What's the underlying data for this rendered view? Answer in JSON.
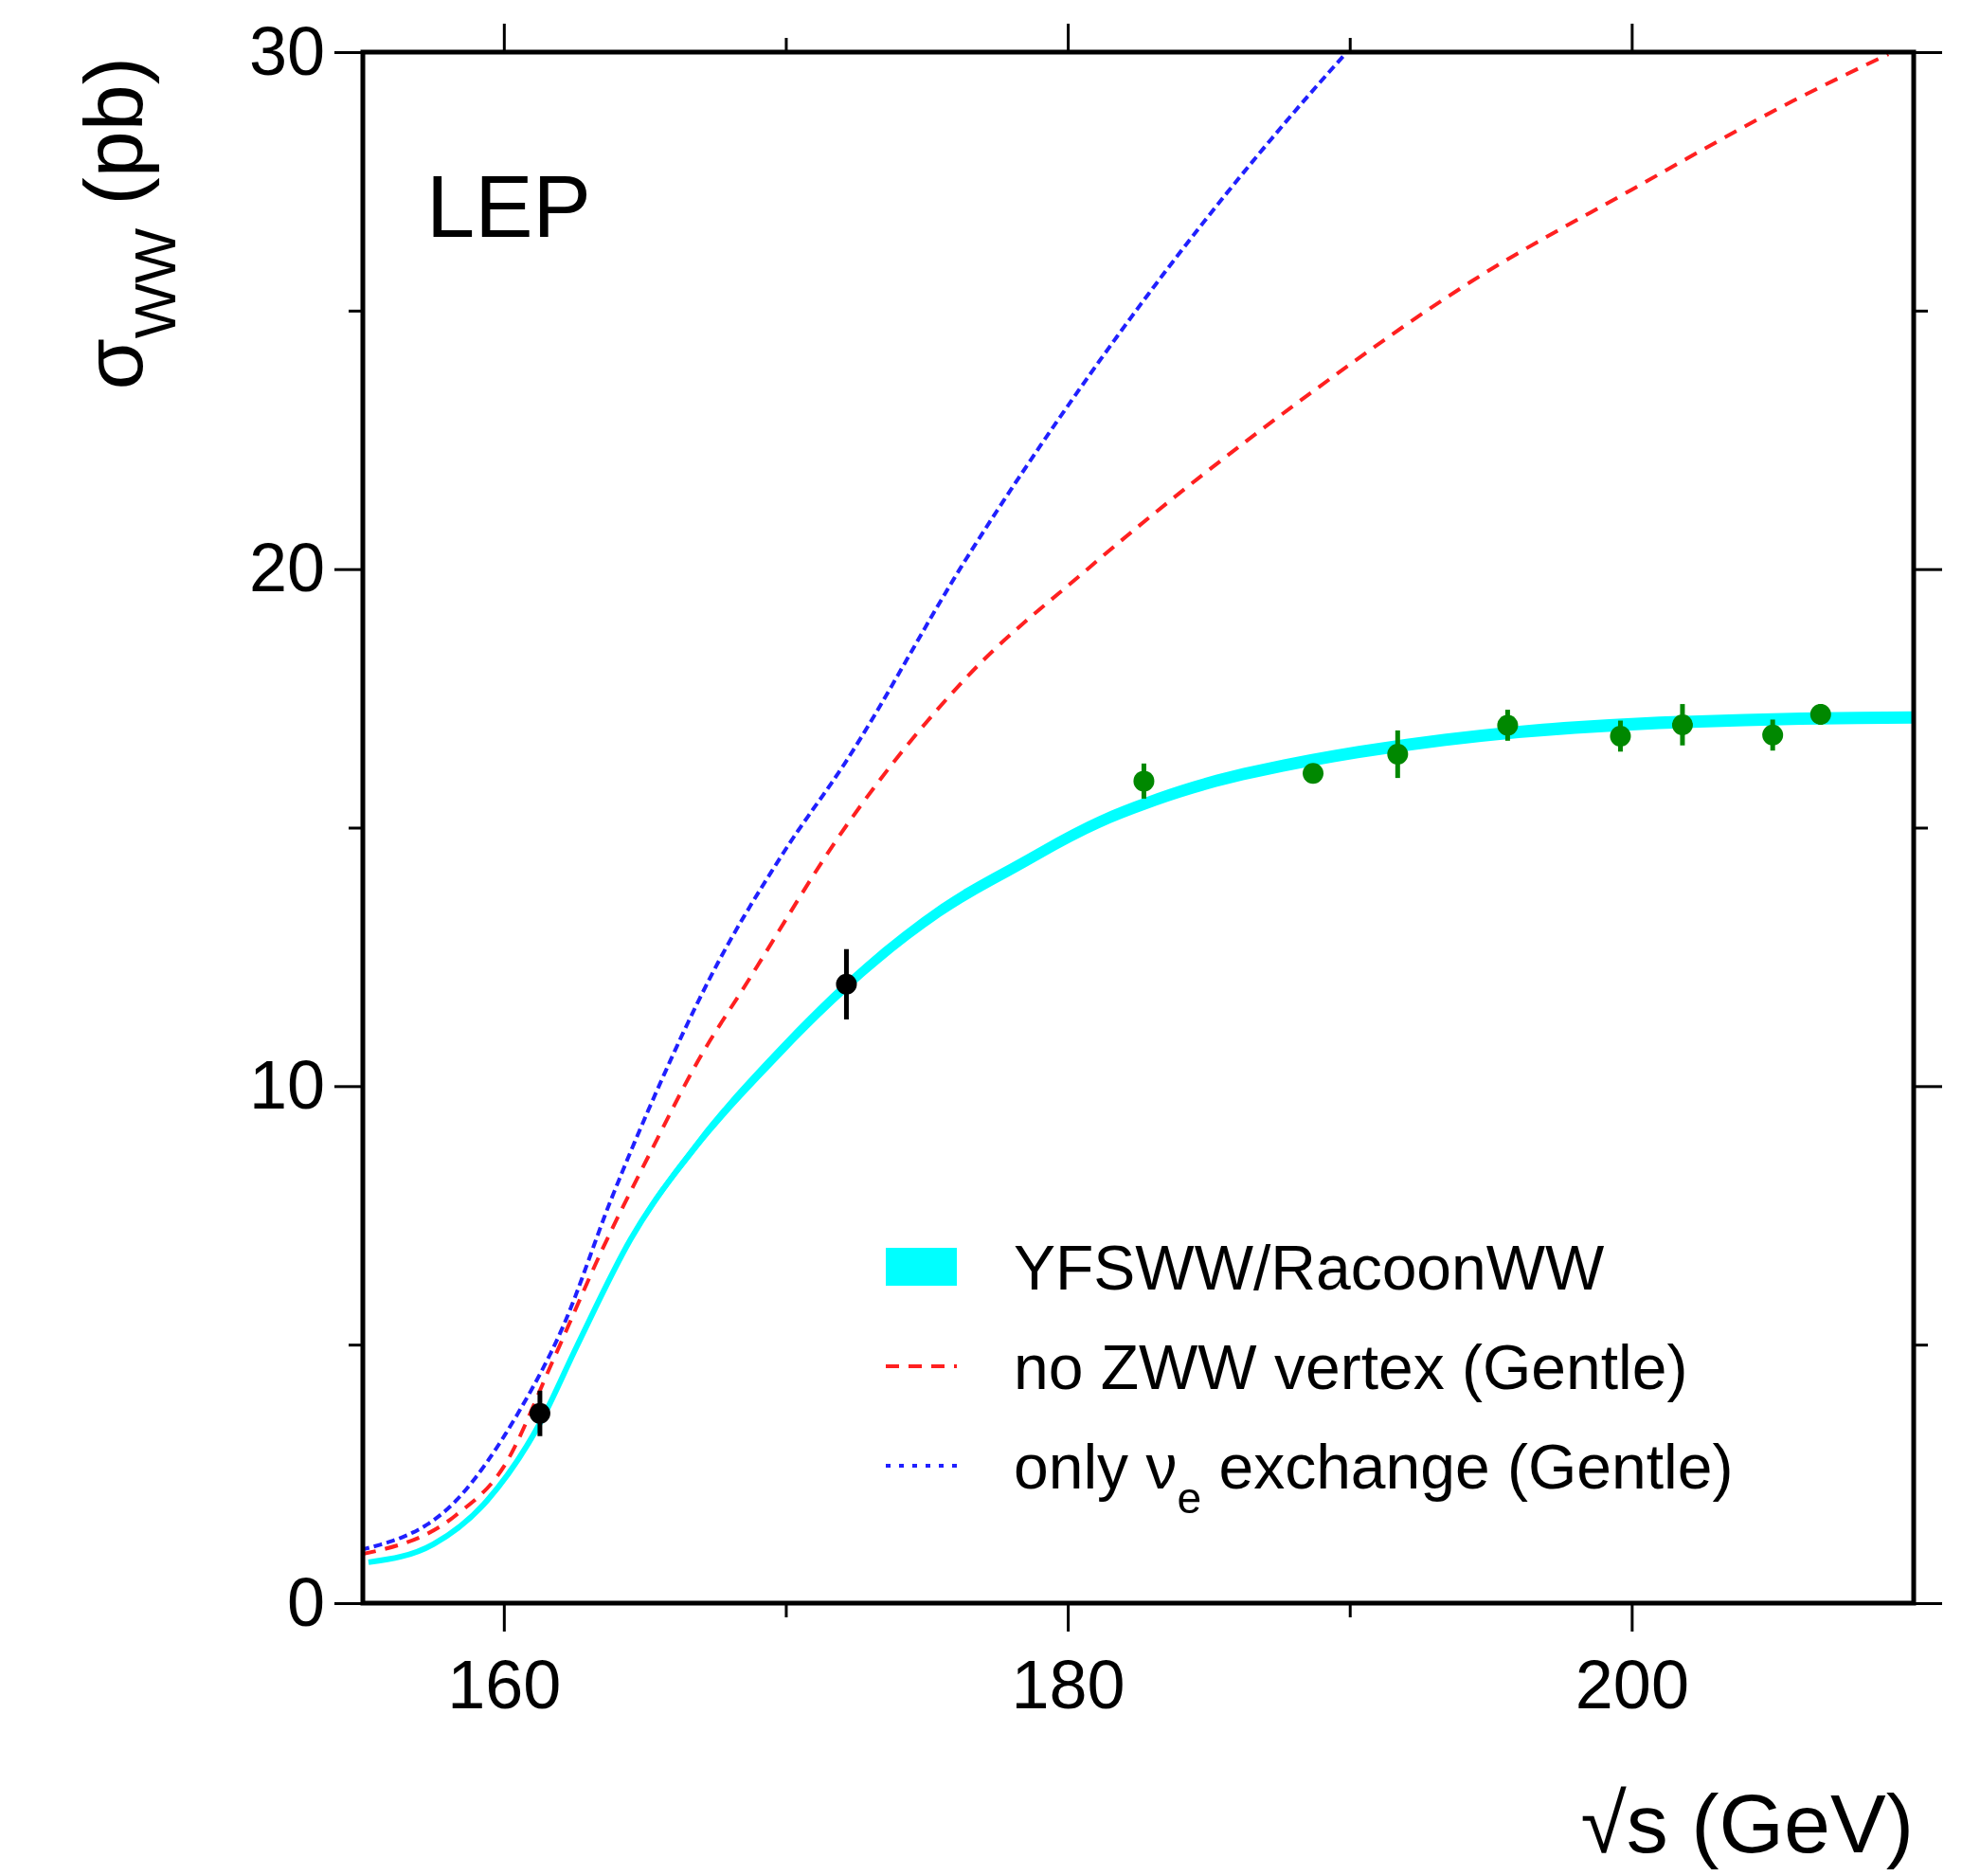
{
  "chart_data": {
    "type": "line",
    "xlabel": "√s (GeV)",
    "ylabel": "σ$_{WW}$ (pb)",
    "annotations": [
      "LEP"
    ],
    "xlim": [
      155,
      210
    ],
    "ylim": [
      0,
      30
    ],
    "xticks": [
      {
        "value": 160,
        "label": "160"
      },
      {
        "value": 170,
        "label": null
      },
      {
        "value": 180,
        "label": "180"
      },
      {
        "value": 190,
        "label": null
      },
      {
        "value": 200,
        "label": "200"
      }
    ],
    "yticks": [
      0,
      {
        "value": 5,
        "label": null
      },
      10,
      {
        "value": 15,
        "label": null
      },
      20,
      {
        "value": 25,
        "label": null
      },
      30
    ],
    "legend": "bottom right",
    "grid": false,
    "series": [
      {
        "name": "YFSWW/RacoonWW",
        "color": "#00ffff",
        "line_style": "solid",
        "x": [
          155.2,
          157.5,
          159.4,
          161.3,
          162.6,
          164.5,
          166.9,
          169.5,
          171.2,
          175.5,
          178.5,
          180.7,
          184,
          188.6,
          192,
          196,
          200,
          204,
          208,
          210
        ],
        "values": [
          0.79,
          1.14,
          1.98,
          3.5,
          4.98,
          7.04,
          8.9,
          10.5,
          11.45,
          13.4,
          14.35,
          15.0,
          15.7,
          16.3,
          16.6,
          16.85,
          17.0,
          17.08,
          17.12,
          17.13
        ],
        "lower": [
          0.77,
          1.12,
          1.95,
          3.46,
          4.92,
          6.96,
          8.8,
          10.38,
          11.33,
          13.28,
          14.23,
          14.88,
          15.58,
          16.18,
          16.48,
          16.73,
          16.88,
          16.96,
          17.0,
          17.01
        ],
        "upper": [
          0.81,
          1.16,
          2.01,
          3.54,
          5.04,
          7.12,
          9.0,
          10.62,
          11.57,
          13.52,
          14.47,
          15.12,
          15.82,
          16.42,
          16.72,
          16.97,
          17.12,
          17.2,
          17.24,
          17.25
        ]
      },
      {
        "name": "no ZWW vertex (Gentle)",
        "color": "#ff2020",
        "line_style": "dashed",
        "x": [
          155,
          158.3,
          160,
          161.75,
          163.5,
          165.2,
          166.9,
          168.6,
          172.1,
          176.4,
          180.7,
          188.6,
          194.3,
          200,
          205.7,
          209.1
        ],
        "values": [
          0.95,
          1.7,
          2.64,
          4.7,
          6.85,
          8.72,
          10.5,
          11.98,
          15.0,
          17.9,
          20.0,
          23.4,
          25.56,
          27.34,
          29.05,
          29.96
        ]
      },
      {
        "name": "only ν$_{e}$ exchange (Gentle)",
        "color": "#2020ff",
        "line_style": "dotted",
        "x": [
          155,
          158.3,
          160.5,
          162.1,
          163.8,
          165.5,
          167.3,
          169.9,
          172.1,
          176.4,
          180.7,
          188.6,
          189.9
        ],
        "values": [
          1.04,
          1.98,
          3.67,
          5.35,
          7.8,
          10.0,
          12.08,
          14.5,
          16.25,
          20.2,
          23.7,
          29.2,
          30
        ]
      },
      {
        "type": "scatter",
        "marker": "circle",
        "x": [
          161.28,
          172.15,
          182.7,
          188.7,
          191.7,
          195.6,
          199.6,
          201.8,
          205.0,
          206.7
        ],
        "values": [
          3.67,
          11.97,
          15.9,
          16.05,
          16.42,
          16.98,
          16.77,
          16.99,
          16.79,
          17.19
        ],
        "errors": [
          0.44,
          0.68,
          0.34,
          null,
          0.46,
          0.3,
          0.3,
          0.4,
          0.3,
          0.2
        ],
        "colors": [
          "#000000",
          "#000000",
          "#008800",
          "#008800",
          "#008800",
          "#008800",
          "#008800",
          "#008800",
          "#008800",
          "#008800"
        ]
      }
    ]
  }
}
